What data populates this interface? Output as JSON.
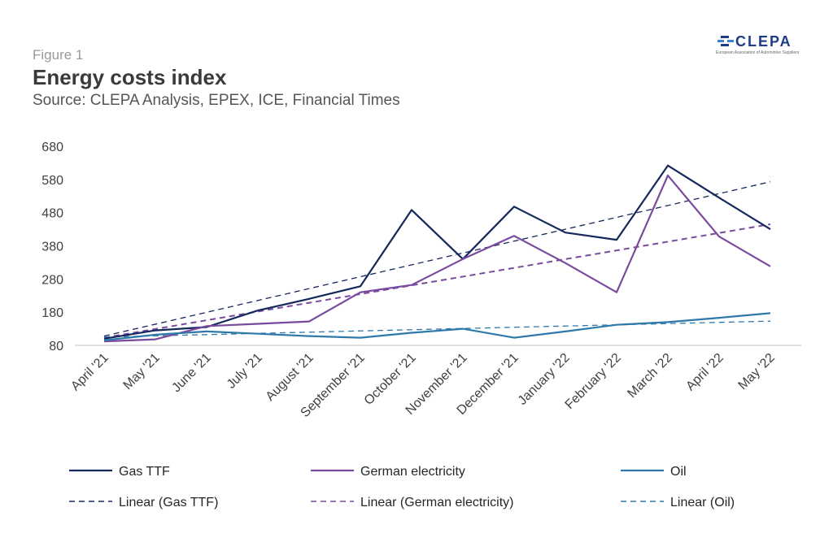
{
  "header": {
    "figure_label": "Figure 1",
    "title": "Energy costs index",
    "source": "Source: CLEPA Analysis, EPEX, ICE, Financial Times"
  },
  "logo": {
    "wordmark": "CLEPA",
    "subtitle": "European Association of Automotive Suppliers",
    "color": "#1f3c88",
    "accent": "#3a7fd5"
  },
  "chart_data": {
    "type": "line",
    "categories": [
      "April '21",
      "May '21",
      "June '21",
      "July '21",
      "August '21",
      "September '21",
      "October '21",
      "November '21",
      "December '21",
      "January '22",
      "February '22",
      "March '22",
      "April '22",
      "May '22"
    ],
    "y_ticks": [
      80,
      180,
      280,
      380,
      480,
      580,
      680
    ],
    "ylim": [
      80,
      680
    ],
    "grid": false,
    "legend_position": "bottom",
    "series": [
      {
        "name": "Gas TTF",
        "color": "#16275c",
        "style": "solid",
        "values": [
          100,
          125,
          135,
          185,
          220,
          258,
          488,
          340,
          498,
          420,
          398,
          622,
          525,
          430
        ]
      },
      {
        "name": "German electricity",
        "color": "#7a4a9e",
        "style": "solid",
        "values": [
          92,
          98,
          138,
          145,
          152,
          240,
          262,
          340,
          410,
          328,
          240,
          592,
          408,
          318
        ]
      },
      {
        "name": "Oil",
        "color": "#2e79aa",
        "style": "solid",
        "values": [
          95,
          112,
          122,
          115,
          108,
          103,
          118,
          130,
          103,
          122,
          142,
          150,
          163,
          177
        ]
      }
    ],
    "trendlines": [
      {
        "name": "Linear (Gas TTF)",
        "color": "#16275c",
        "style": "dashed",
        "start": 108,
        "end": 573
      },
      {
        "name": "Linear (German electricity)",
        "color": "#7a4a9e",
        "style": "dashed",
        "start": 103,
        "end": 445
      },
      {
        "name": "Linear (Oil)",
        "color": "#2e79aa",
        "style": "dashed",
        "start": 105,
        "end": 153
      }
    ]
  }
}
